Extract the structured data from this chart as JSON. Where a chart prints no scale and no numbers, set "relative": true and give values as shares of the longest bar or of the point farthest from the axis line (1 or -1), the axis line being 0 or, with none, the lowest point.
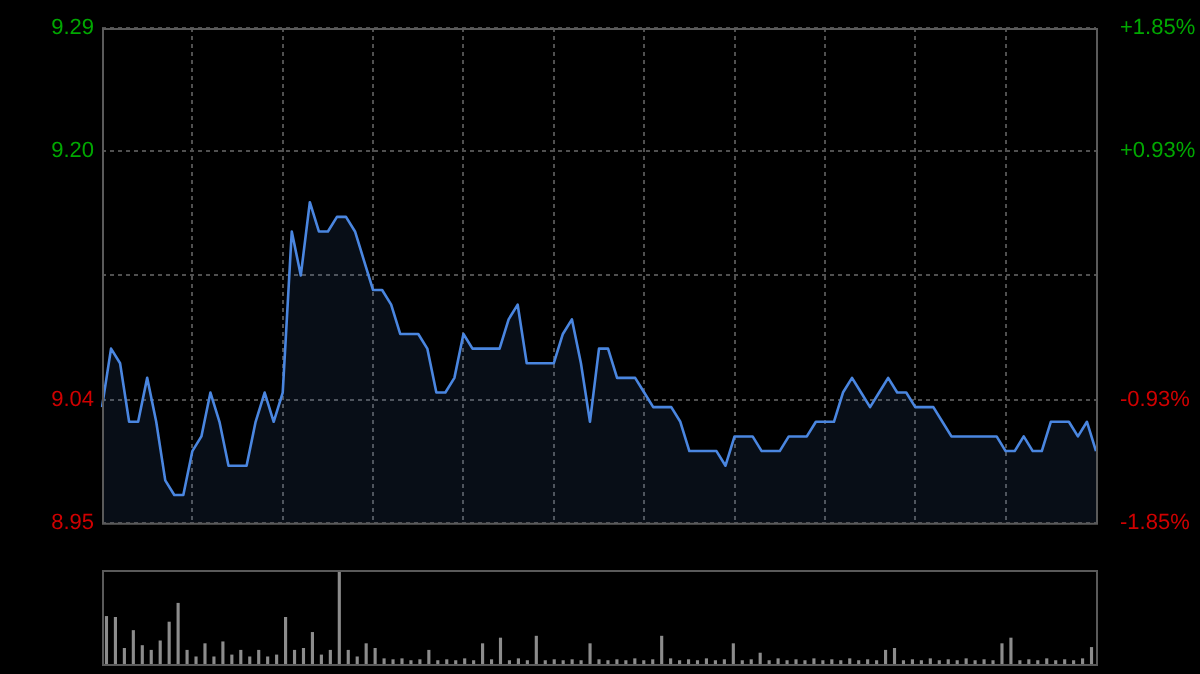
{
  "chart_data": [
    {
      "type": "area",
      "categories": [
        null,
        null,
        null,
        null,
        null,
        null,
        null,
        null,
        null,
        null,
        null,
        null,
        null,
        null,
        null,
        null,
        null,
        null,
        null,
        null,
        null,
        null,
        null,
        null,
        null,
        null,
        null,
        null,
        null,
        null,
        null,
        null,
        null,
        null,
        null,
        null,
        null,
        null,
        null,
        null,
        null,
        null,
        null,
        null,
        null,
        null,
        null,
        null,
        null,
        null,
        null,
        null,
        null,
        null,
        null,
        null,
        null,
        null,
        null,
        null,
        null,
        null,
        null,
        null,
        null,
        null,
        null,
        null,
        null,
        null,
        null,
        null,
        null,
        null,
        null,
        null,
        null,
        null,
        null,
        null,
        null,
        null,
        null,
        null,
        null,
        null,
        null,
        null,
        null,
        null,
        null,
        null,
        null,
        null,
        null,
        null,
        null,
        null,
        null,
        null,
        null,
        null,
        null,
        null,
        null,
        null,
        null,
        null,
        null,
        null,
        null
      ],
      "series": [
        {
          "color": "#4a86e0",
          "values": [
            9.03,
            9.07,
            9.06,
            9.02,
            9.02,
            9.05,
            9.02,
            8.98,
            8.97,
            8.97,
            9.0,
            9.01,
            9.04,
            9.02,
            8.99,
            8.99,
            8.99,
            9.02,
            9.04,
            9.02,
            9.04,
            9.15,
            9.12,
            9.17,
            9.15,
            9.15,
            9.16,
            9.16,
            9.15,
            9.13,
            9.11,
            9.11,
            9.1,
            9.08,
            9.08,
            9.08,
            9.07,
            9.04,
            9.04,
            9.05,
            9.08,
            9.07,
            9.07,
            9.07,
            9.07,
            9.09,
            9.1,
            9.06,
            9.06,
            9.06,
            9.06,
            9.08,
            9.09,
            9.06,
            9.02,
            9.07,
            9.07,
            9.05,
            9.05,
            9.05,
            9.04,
            9.03,
            9.03,
            9.03,
            9.02,
            9.0,
            9.0,
            9.0,
            9.0,
            8.99,
            9.01,
            9.01,
            9.01,
            9.0,
            9.0,
            9.0,
            9.01,
            9.01,
            9.01,
            9.02,
            9.02,
            9.02,
            9.04,
            9.05,
            9.04,
            9.03,
            9.04,
            9.05,
            9.04,
            9.04,
            9.03,
            9.03,
            9.03,
            9.02,
            9.01,
            9.01,
            9.01,
            9.01,
            9.01,
            9.01,
            9.0,
            9.0,
            9.01,
            9.0,
            9.0,
            9.02,
            9.02,
            9.02,
            9.01,
            9.02,
            9.0
          ]
        }
      ],
      "ylim": [
        8.951,
        9.289
      ],
      "yticks": [
        {
          "value": 8.951,
          "label": "8.95"
        },
        {
          "value": 9.035,
          "label": "9.04"
        },
        {
          "value": 9.12,
          "label": null
        },
        {
          "value": 9.205,
          "label": "9.20"
        },
        {
          "value": 9.289,
          "label": "9.29"
        }
      ],
      "y2lim": [
        -1.85,
        1.85
      ],
      "y2ticks": [
        {
          "value": -1.85,
          "label": "-1.85%"
        },
        {
          "value": -0.93,
          "label": "-0.93%"
        },
        {
          "value": 0.93,
          "label": "+0.93%"
        },
        {
          "value": 1.85,
          "label": "+1.85%"
        }
      ],
      "grid": true,
      "tick_labels": "y",
      "marker": "none"
    },
    {
      "type": "bar",
      "relative": true,
      "categories": [
        null,
        null,
        null,
        null,
        null,
        null,
        null,
        null,
        null,
        null,
        null,
        null,
        null,
        null,
        null,
        null,
        null,
        null,
        null,
        null,
        null,
        null,
        null,
        null,
        null,
        null,
        null,
        null,
        null,
        null,
        null,
        null,
        null,
        null,
        null,
        null,
        null,
        null,
        null,
        null,
        null,
        null,
        null,
        null,
        null,
        null,
        null,
        null,
        null,
        null,
        null,
        null,
        null,
        null,
        null,
        null,
        null,
        null,
        null,
        null,
        null,
        null,
        null,
        null,
        null,
        null,
        null,
        null,
        null,
        null,
        null,
        null,
        null,
        null,
        null,
        null,
        null,
        null,
        null,
        null,
        null,
        null,
        null,
        null,
        null,
        null,
        null,
        null,
        null,
        null,
        null,
        null,
        null,
        null,
        null,
        null,
        null,
        null,
        null,
        null,
        null,
        null,
        null,
        null,
        null,
        null,
        null,
        null,
        null,
        null,
        null
      ],
      "values": [
        0.51,
        0.5,
        0.17,
        0.36,
        0.2,
        0.15,
        0.25,
        0.45,
        0.65,
        0.15,
        0.08,
        0.22,
        0.08,
        0.24,
        0.1,
        0.15,
        0.08,
        0.15,
        0.08,
        0.1,
        0.5,
        0.15,
        0.17,
        0.34,
        0.1,
        0.15,
        1,
        0.15,
        0.08,
        0.22,
        0.17,
        0.06,
        0.05,
        0.06,
        0.04,
        0.05,
        0.15,
        0.04,
        0.05,
        0.04,
        0.06,
        0.04,
        0.22,
        0.05,
        0.28,
        0.04,
        0.06,
        0.04,
        0.3,
        0.04,
        0.05,
        0.04,
        0.05,
        0.04,
        0.22,
        0.05,
        0.04,
        0.05,
        0.04,
        0.06,
        0.04,
        0.05,
        0.3,
        0.06,
        0.04,
        0.05,
        0.04,
        0.06,
        0.04,
        0.05,
        0.22,
        0.04,
        0.05,
        0.12,
        0.04,
        0.06,
        0.04,
        0.05,
        0.04,
        0.06,
        0.04,
        0.05,
        0.04,
        0.06,
        0.04,
        0.05,
        0.04,
        0.15,
        0.17,
        0.04,
        0.05,
        0.04,
        0.06,
        0.04,
        0.05,
        0.04,
        0.06,
        0.04,
        0.05,
        0.04,
        0.22,
        0.28,
        0.04,
        0.05,
        0.04,
        0.06,
        0.04,
        0.05,
        0.04,
        0.06,
        0.18
      ],
      "color": "#8c8c8c",
      "tick_labels": false
    }
  ]
}
